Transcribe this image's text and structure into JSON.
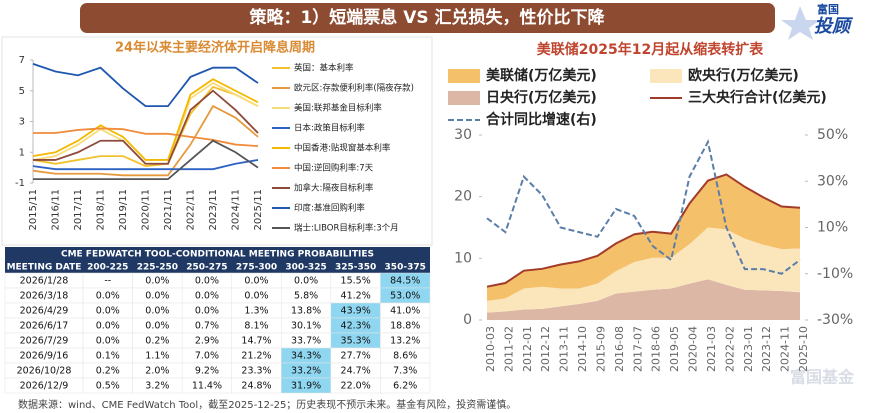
{
  "header": {
    "title": "策略：1）短端票息 VS 汇兑损失，性价比下降",
    "logo_top": "富国",
    "logo_bottom": "投顾"
  },
  "chart_data": [
    {
      "type": "line",
      "title": "24年以来主要经济体开启降息周期",
      "categories": [
        "2015/11",
        "2016/11",
        "2017/11",
        "2018/11",
        "2019/11",
        "2020/11",
        "2021/11",
        "2022/11",
        "2023/11",
        "2024/11",
        "2025/11"
      ],
      "ylim": [
        -1,
        7
      ],
      "yticks": [
        7,
        5,
        3,
        1,
        -1
      ],
      "series": [
        {
          "name": "英国：基本利率",
          "color": "#f2c12e",
          "values": [
            0.5,
            0.25,
            0.5,
            0.75,
            0.75,
            0.1,
            0.25,
            3.5,
            5.25,
            4.75,
            4.0
          ]
        },
        {
          "name": "欧元区:存款便利利率(隔夜存款)",
          "color": "#e79a3c",
          "values": [
            -0.2,
            -0.4,
            -0.4,
            -0.4,
            -0.5,
            -0.5,
            -0.5,
            1.5,
            4.0,
            3.25,
            2.0
          ]
        },
        {
          "name": "美国:联邦基金目标利率",
          "color": "#f7dc7a",
          "values": [
            0.5,
            0.75,
            1.5,
            2.5,
            1.75,
            0.25,
            0.25,
            4.5,
            5.5,
            4.75,
            4.0
          ]
        },
        {
          "name": "日本:政策目标利率",
          "color": "#2c62c4",
          "values": [
            0.1,
            -0.1,
            -0.1,
            -0.1,
            -0.1,
            -0.1,
            -0.1,
            -0.1,
            -0.1,
            0.25,
            0.5
          ]
        },
        {
          "name": "中国香港:贴现窗基本利率",
          "color": "#f5b800",
          "values": [
            0.75,
            1.0,
            1.75,
            2.75,
            2.0,
            0.5,
            0.5,
            4.75,
            5.75,
            5.0,
            4.25
          ]
        },
        {
          "name": "中国:逆回购利率:7天",
          "color": "#f08c3c",
          "values": [
            2.25,
            2.25,
            2.45,
            2.55,
            2.5,
            2.2,
            2.2,
            2.0,
            1.8,
            1.5,
            1.4
          ]
        },
        {
          "name": "加拿大:隔夜目标利率",
          "color": "#8e4a3a",
          "values": [
            0.5,
            0.5,
            1.0,
            1.75,
            1.75,
            0.25,
            0.25,
            3.75,
            5.0,
            3.75,
            2.25
          ]
        },
        {
          "name": "印度:基准回购利率",
          "color": "#1e56b0",
          "values": [
            6.75,
            6.25,
            6.0,
            6.5,
            5.15,
            4.0,
            4.0,
            5.9,
            6.5,
            6.5,
            5.5
          ]
        },
        {
          "name": "瑞士:LIBOR目标利率:3个月",
          "color": "#555555",
          "values": [
            -0.75,
            -0.75,
            -0.75,
            -0.75,
            -0.75,
            -0.75,
            -0.75,
            0.5,
            1.75,
            1.0,
            0.0
          ]
        }
      ]
    },
    {
      "type": "area",
      "title": "美联储2025年12月起从缩表转扩表",
      "categories": [
        "2010-03",
        "2011-02",
        "2012-01",
        "2012-12",
        "2013-11",
        "2014-10",
        "2015-09",
        "2016-08",
        "2017-07",
        "2018-06",
        "2019-05",
        "2020-04",
        "2021-03",
        "2022-02",
        "2023-01",
        "2023-12",
        "2024-11",
        "2025-10"
      ],
      "ylim": [
        0,
        30
      ],
      "yticks": [
        0,
        10,
        20,
        30
      ],
      "y2lim": [
        -30,
        50
      ],
      "y2ticks": [
        {
          "value": -30,
          "label": "-30%"
        },
        {
          "value": -10,
          "label": "-10%"
        },
        {
          "value": 10,
          "label": "10%"
        },
        {
          "value": 30,
          "label": "30%"
        },
        {
          "value": 50,
          "label": "50%"
        }
      ],
      "series": [
        {
          "name": "美联储(万亿美元)",
          "color": "#f5c06a",
          "kind": "area",
          "values": [
            2.3,
            2.5,
            2.9,
            2.9,
            3.9,
            4.4,
            4.5,
            4.5,
            4.5,
            4.2,
            3.9,
            6.6,
            7.6,
            8.9,
            8.4,
            7.7,
            6.9,
            6.6
          ]
        },
        {
          "name": "欧央行(万亿美元)",
          "color": "#fbe6bc",
          "kind": "area",
          "values": [
            1.9,
            2.1,
            3.4,
            3.6,
            2.9,
            2.5,
            2.8,
            3.6,
            4.8,
            5.2,
            5.0,
            6.4,
            8.4,
            9.0,
            8.3,
            7.4,
            6.8,
            7.1
          ]
        },
        {
          "name": "日央行(万亿美元)",
          "color": "#ddb7a6",
          "kind": "area",
          "values": [
            1.2,
            1.4,
            1.7,
            1.8,
            2.2,
            2.6,
            3.1,
            4.3,
            4.6,
            4.9,
            5.1,
            5.9,
            6.6,
            5.7,
            4.9,
            4.8,
            4.7,
            4.5
          ]
        },
        {
          "name": "三大央行合计(亿美元)",
          "color": "#a33b2a",
          "kind": "line",
          "values": [
            5.4,
            6.0,
            8.0,
            8.3,
            9.0,
            9.5,
            10.4,
            12.4,
            13.9,
            14.3,
            14.0,
            18.9,
            22.6,
            23.6,
            21.6,
            19.9,
            18.4,
            18.2
          ]
        },
        {
          "name": "合计同比增速(右)",
          "color": "#5b7ea8",
          "kind": "line",
          "dashed": true,
          "axis": "y2",
          "values": [
            14,
            8,
            32,
            24,
            10,
            8,
            6,
            18,
            15,
            2,
            -4,
            32,
            47,
            10,
            -8,
            -8,
            -10,
            -4
          ]
        }
      ]
    }
  ],
  "table": {
    "title": "CME FEDWATCH TOOL-CONDITIONAL MEETING PROBABILITIES",
    "columns": [
      "MEETING DATE",
      "200-225",
      "225-250",
      "250-275",
      "275-300",
      "300-325",
      "325-350",
      "350-375"
    ],
    "rows": [
      [
        "2026/1/28",
        "--",
        "0.0%",
        "0.0%",
        "0.0%",
        "0.0%",
        "15.5%",
        "84.5%"
      ],
      [
        "2026/3/18",
        "0.0%",
        "0.0%",
        "0.0%",
        "0.0%",
        "5.8%",
        "41.2%",
        "53.0%"
      ],
      [
        "2026/4/29",
        "0.0%",
        "0.0%",
        "0.0%",
        "1.3%",
        "13.8%",
        "43.9%",
        "41.0%"
      ],
      [
        "2026/6/17",
        "0.0%",
        "0.0%",
        "0.7%",
        "8.1%",
        "30.1%",
        "42.3%",
        "18.8%"
      ],
      [
        "2026/7/29",
        "0.0%",
        "0.2%",
        "2.9%",
        "14.7%",
        "33.7%",
        "35.3%",
        "13.2%"
      ],
      [
        "2026/9/16",
        "0.1%",
        "1.1%",
        "7.0%",
        "21.2%",
        "34.3%",
        "27.7%",
        "8.6%"
      ],
      [
        "2026/10/28",
        "0.2%",
        "2.0%",
        "9.2%",
        "23.3%",
        "33.2%",
        "24.7%",
        "7.3%"
      ],
      [
        "2026/12/9",
        "0.5%",
        "3.2%",
        "11.4%",
        "24.8%",
        "31.9%",
        "22.0%",
        "6.2%"
      ]
    ],
    "highlight": [
      7,
      7,
      6,
      6,
      6,
      5,
      5,
      5
    ]
  },
  "watermark": "富国基金",
  "footer": "数据来源：wind、CME FedWatch Tool，截至2025-12-25；历史表现不预示未来。基金有风险，投资需谨慎。"
}
